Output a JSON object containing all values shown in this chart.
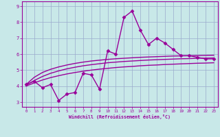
{
  "xlabel": "Windchill (Refroidissement éolien,°C)",
  "x_values": [
    0,
    1,
    2,
    3,
    4,
    5,
    6,
    7,
    8,
    9,
    10,
    11,
    12,
    13,
    14,
    15,
    16,
    17,
    18,
    19,
    20,
    21,
    22,
    23
  ],
  "y_data": [
    4.1,
    4.3,
    3.9,
    4.1,
    3.1,
    3.5,
    3.6,
    4.8,
    4.7,
    3.8,
    6.2,
    6.0,
    8.3,
    8.7,
    7.5,
    6.6,
    7.0,
    6.7,
    6.3,
    5.9,
    5.9,
    5.8,
    5.7,
    5.7
  ],
  "y_curve1": [
    4.1,
    4.55,
    4.85,
    5.05,
    5.2,
    5.32,
    5.42,
    5.5,
    5.57,
    5.62,
    5.67,
    5.71,
    5.74,
    5.77,
    5.8,
    5.82,
    5.84,
    5.86,
    5.88,
    5.89,
    5.9,
    5.91,
    5.92,
    5.93
  ],
  "y_curve2": [
    4.05,
    4.35,
    4.6,
    4.8,
    4.95,
    5.08,
    5.18,
    5.27,
    5.34,
    5.4,
    5.46,
    5.5,
    5.54,
    5.57,
    5.6,
    5.63,
    5.65,
    5.67,
    5.69,
    5.71,
    5.72,
    5.74,
    5.75,
    5.76
  ],
  "y_curve3": [
    4.0,
    4.2,
    4.38,
    4.53,
    4.65,
    4.76,
    4.85,
    4.93,
    5.0,
    5.06,
    5.11,
    5.16,
    5.2,
    5.23,
    5.27,
    5.3,
    5.32,
    5.35,
    5.37,
    5.39,
    5.41,
    5.43,
    5.44,
    5.46
  ],
  "line_color": "#990099",
  "bg_color": "#c8e8e8",
  "grid_color": "#99aacc",
  "ylim": [
    2.7,
    9.3
  ],
  "xlim": [
    -0.5,
    23.5
  ],
  "yticks": [
    3,
    4,
    5,
    6,
    7,
    8,
    9
  ],
  "xticks": [
    0,
    1,
    2,
    3,
    4,
    5,
    6,
    7,
    8,
    9,
    10,
    11,
    12,
    13,
    14,
    15,
    16,
    17,
    18,
    19,
    20,
    21,
    22,
    23
  ],
  "markersize": 2.5,
  "linewidth": 1.0
}
